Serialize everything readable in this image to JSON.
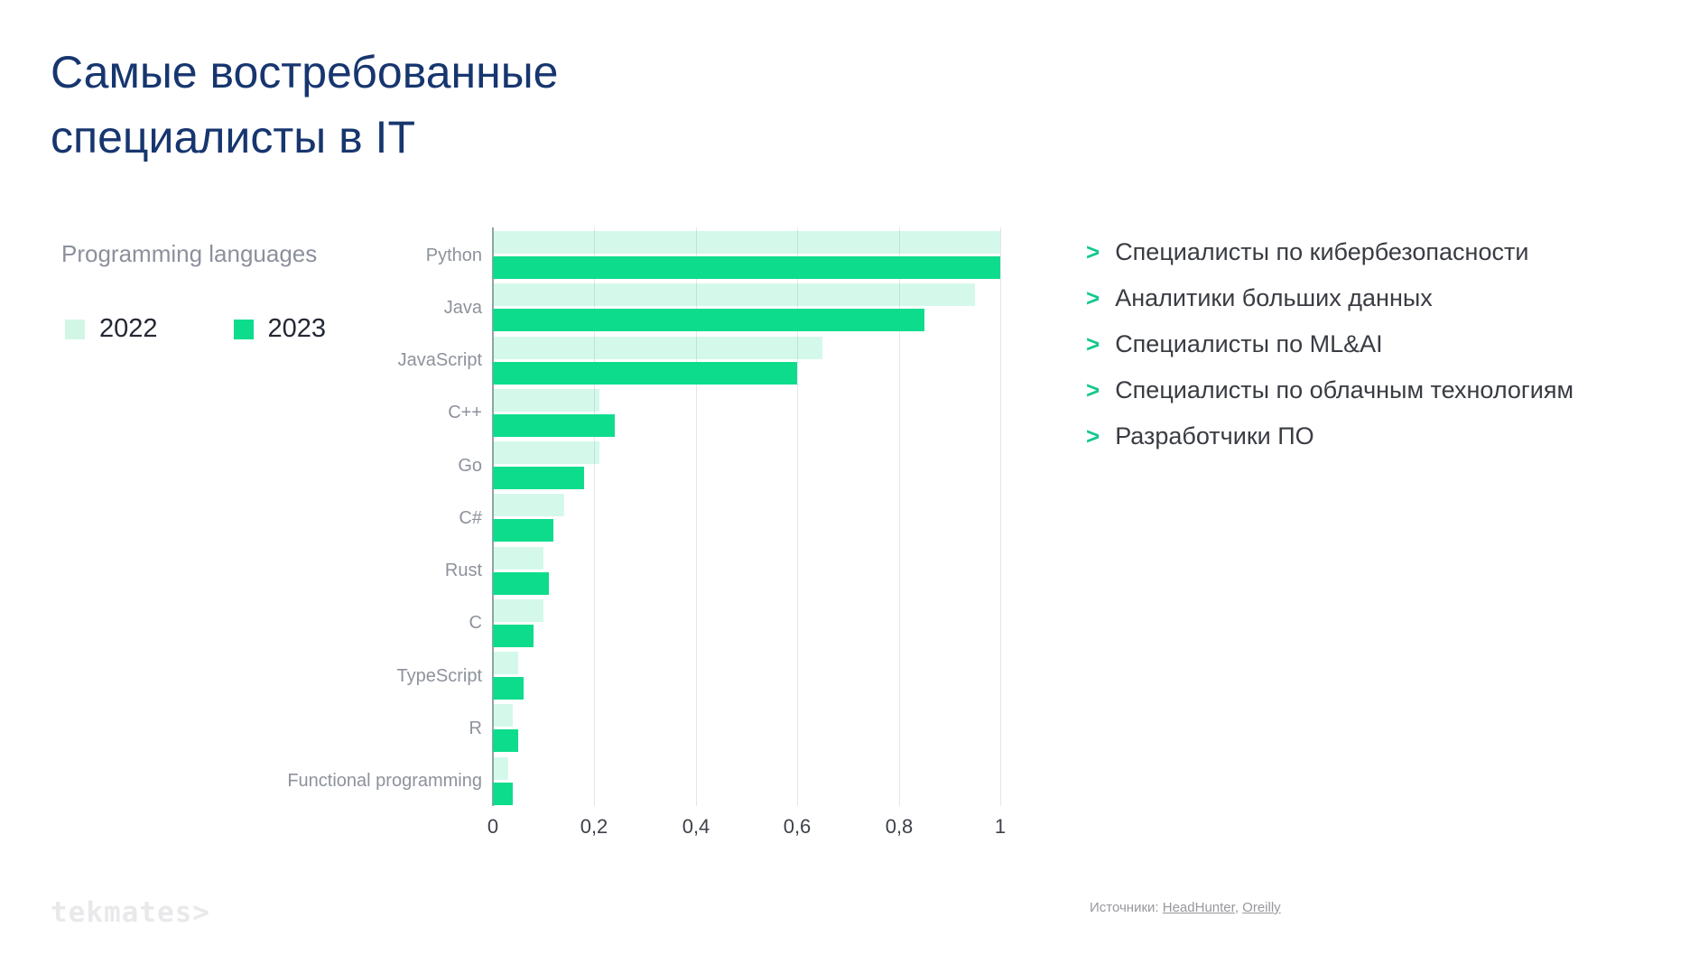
{
  "slide": {
    "title": "Самые востребованные\nспециалисты в IT",
    "footer_logo": "tekmates>",
    "sources_label": "Источники:",
    "sources_links": [
      "HeadHunter",
      "Oreilly"
    ],
    "sources_separator": ", "
  },
  "legend": {
    "title": "Programming languages",
    "items": [
      {
        "label": "2022",
        "color": "#d2f6e6"
      },
      {
        "label": "2023",
        "color": "#0edc8d"
      }
    ]
  },
  "bullets": {
    "marker": ">",
    "marker_color": "#14c78e",
    "items": [
      "Специалисты по кибербезопасности",
      "Аналитики больших данных",
      "Специалисты по ML&AI",
      "Специалисты по облачным технологиям",
      "Разработчики ПО"
    ]
  },
  "chart_data": {
    "type": "bar",
    "orientation": "horizontal",
    "title": "Programming languages",
    "categories": [
      "Python",
      "Java",
      "JavaScript",
      "C++",
      "Go",
      "C#",
      "Rust",
      "C",
      "TypeScript",
      "R",
      "Functional programming"
    ],
    "series": [
      {
        "name": "2022",
        "color": "#d2f6e6",
        "bar_fill": "rgba(16,220,140,0.18)",
        "values": [
          1.0,
          0.95,
          0.65,
          0.21,
          0.21,
          0.14,
          0.1,
          0.1,
          0.05,
          0.04,
          0.03
        ]
      },
      {
        "name": "2023",
        "color": "#0edc8d",
        "bar_fill": "#0edc8d",
        "values": [
          1.0,
          0.85,
          0.6,
          0.24,
          0.18,
          0.12,
          0.11,
          0.08,
          0.06,
          0.05,
          0.04
        ]
      }
    ],
    "xlabel": "",
    "ylabel": "",
    "xlim": [
      0,
      1
    ],
    "xticks": [
      0,
      0.2,
      0.4,
      0.6,
      0.8,
      1
    ],
    "xtick_labels": [
      "0",
      "0,2",
      "0,4",
      "0,6",
      "0,8",
      "1"
    ],
    "grid": true,
    "legend_position": "outside-left",
    "axis_color": "#9aa0a6",
    "gridline_color": "#e4e6ea"
  }
}
